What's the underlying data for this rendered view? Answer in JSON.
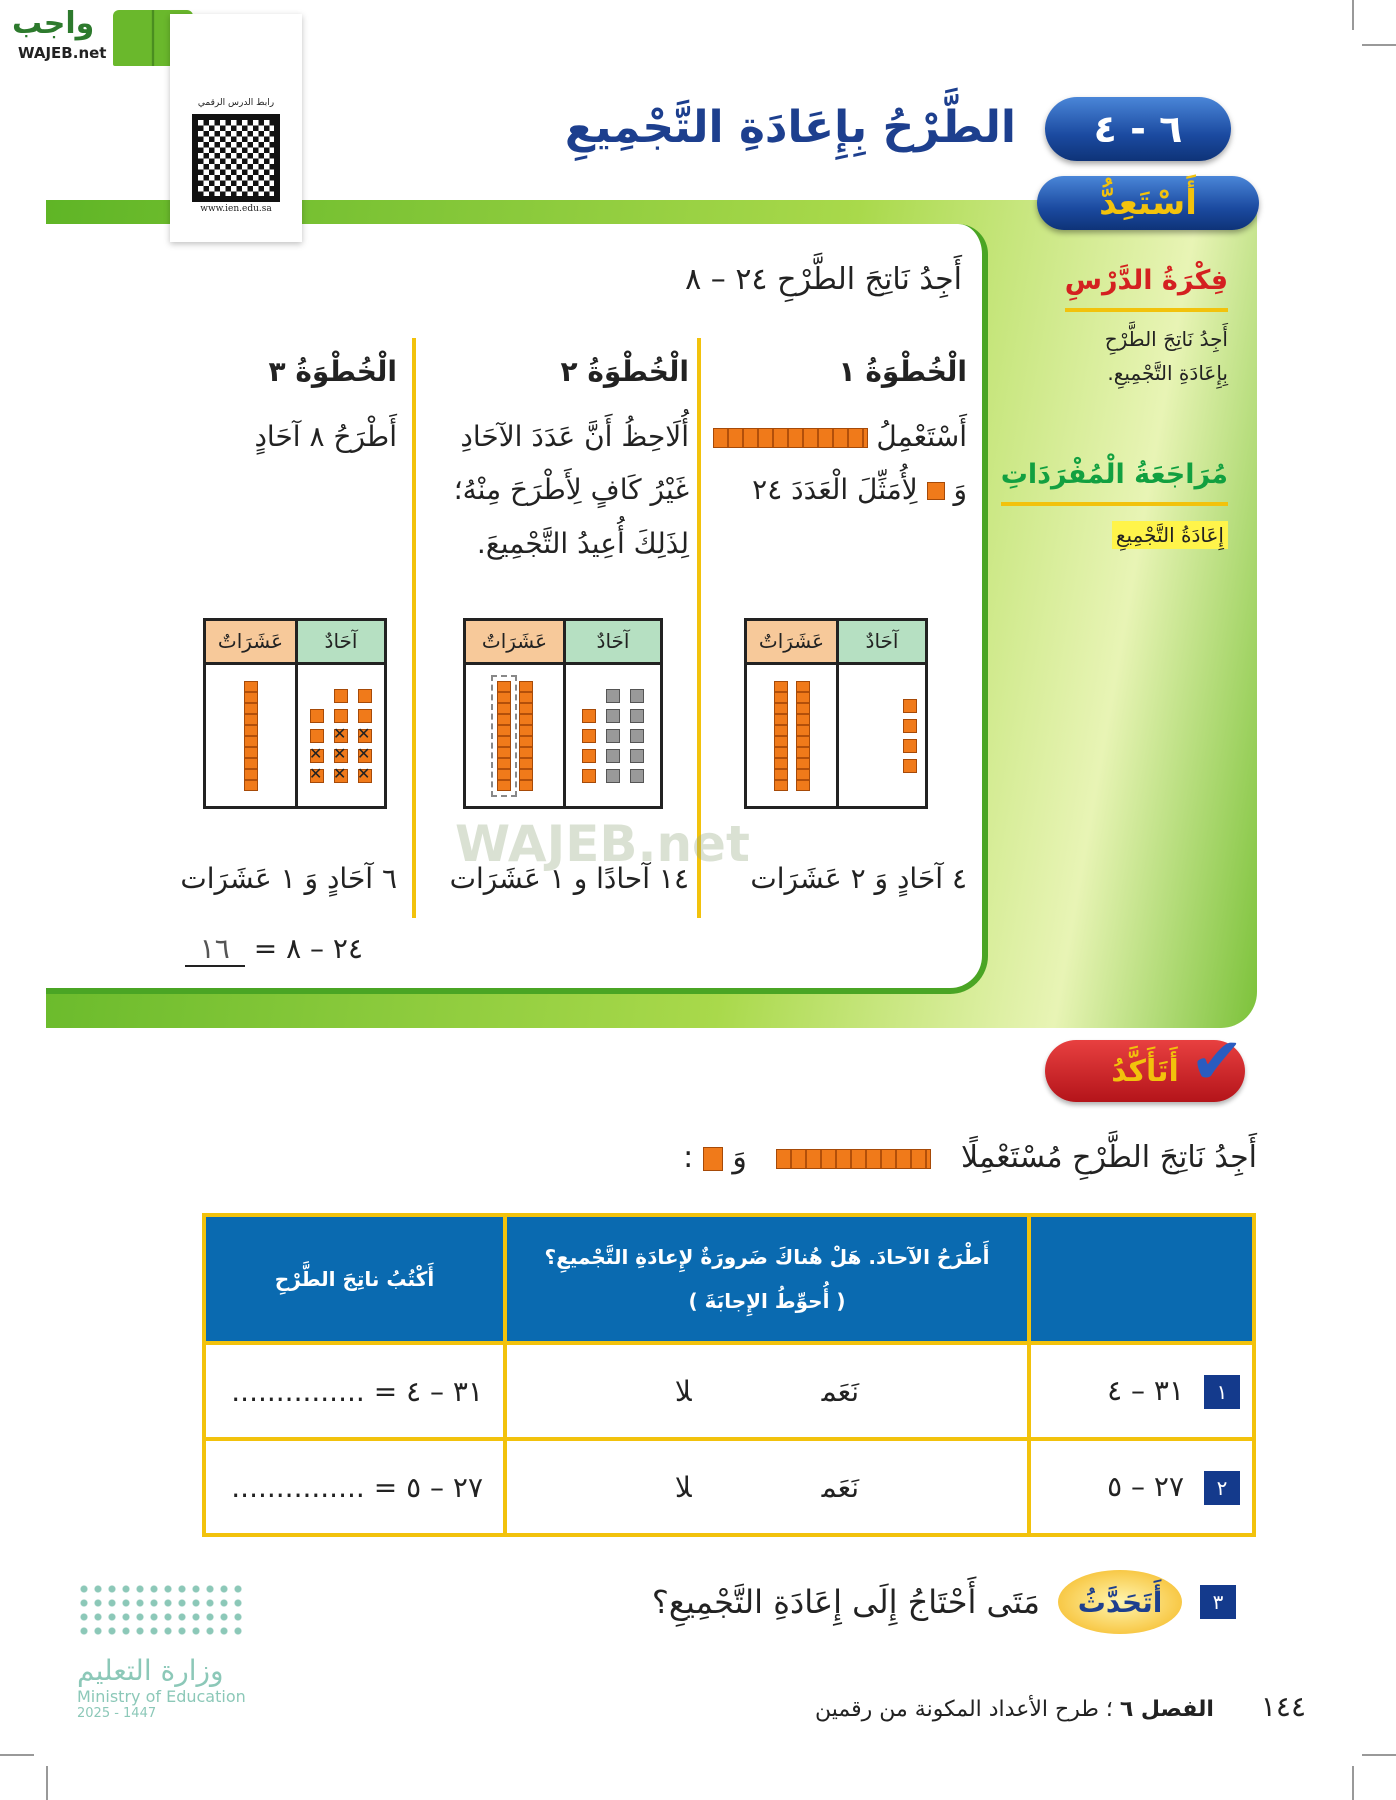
{
  "watermark": {
    "logo_ar": "واجب",
    "logo_en": "WAJEB.net"
  },
  "qr": {
    "label": "رابط الدرس الرقمي",
    "url": "www.ien.edu.sa"
  },
  "lesson": {
    "number": "٦ - ٤",
    "title": "الطَّرْحُ بِإِعَادَةِ التَّجْمِيعِ"
  },
  "ready": {
    "label": "أَسْتَعِدُّ"
  },
  "sidebar": {
    "idea_title": "فِكْرَةُ الدَّرْسِ",
    "idea_line1": "أَجِدُ نَاتِجَ الطَّرْحِ",
    "idea_line2": "بِإِعَادَةِ التَّجْمِيعِ.",
    "vocab_title": "مُرَاجَعَةُ الْمُفْرَدَاتِ",
    "vocab_term": "إِعَادَةُ التَّجْمِيعِ"
  },
  "task": "أَجِدُ نَاتِجَ الطَّرْحِ ٢٤ – ٨",
  "steps": [
    {
      "title": "الْخُطْوَةُ ١",
      "line1": "أَسْتَعْمِلُ",
      "line2_a": "وَ",
      "line2_b": "لِأُمَثِّلَ الْعَدَدَ ٢٤",
      "result": "٤ آحَادٍ وَ ٢ عَشَرَات"
    },
    {
      "title": "الْخُطْوَةُ ٢",
      "line1": "أُلَاحِظُ أَنَّ عَدَدَ الآحَادِ",
      "line2": "غَيْرُ كَافٍ لِأَطْرَحَ مِنْهُ؛",
      "line3": "لِذَلِكَ أُعِيدُ التَّجْمِيعَ.",
      "result": "١٤ آحادًا و ١ عَشَرَات"
    },
    {
      "title": "الْخُطْوَةُ ٣",
      "line1": "أَطْرَحُ ٨ آحَادٍ",
      "result": "٦ آحَادٍ وَ ١ عَشَرَات",
      "equation": "٢٤ – ٨ =",
      "answer": "١٦"
    }
  ],
  "pv_headers": {
    "ones": "آحَادٌ",
    "tens": "عَشَرَاتٌ"
  },
  "confirm": {
    "label": "أَتَأَكَّدُ",
    "instruction_a": "أَجِدُ نَاتِجَ الطَّرْحِ مُسْتَعْمِلًا",
    "instruction_b": "وَ",
    "instruction_c": ":"
  },
  "table": {
    "headers": [
      "",
      "أَطْرَحُ الآحادَ. هَلْ هُناكَ ضَرورَةٌ لإِعادَةِ التَّجْميعِ؟",
      "( أُحوِّطُ الإِجابَةَ )",
      "أَكْتُبُ ناتِجَ الطَّرْحِ"
    ],
    "rows": [
      {
        "num": "١",
        "problem": "٣١ – ٤",
        "yes": "نَعَم",
        "no": "لا",
        "answer": "٣١ – ٤ = ..............."
      },
      {
        "num": "٢",
        "problem": "٢٧ – ٥",
        "yes": "نَعَم",
        "no": "لا",
        "answer": "٢٧ – ٥ = ..............."
      }
    ]
  },
  "q3": {
    "num": "٣",
    "badge": "أَتَحَدَّثُ",
    "text": "مَتَى أَحْتَاجُ إِلَى إِعَادَةِ التَّجْمِيعِ؟"
  },
  "footer": {
    "page": "١٤٤",
    "chapter": "الفصل ٦",
    "sep": " ؛ ",
    "chapter_title": "طرح الأعداد المكونة من رقمين"
  },
  "ministry": {
    "ar": "وزارة التعليم",
    "en": "Ministry of Education",
    "years": "2025 - 1447"
  },
  "colors": {
    "blue": "#1d3f8e",
    "green": "#5fb526",
    "yellow": "#f2c20c",
    "orange": "#f07a1a",
    "table_header": "#0a6ab0"
  }
}
